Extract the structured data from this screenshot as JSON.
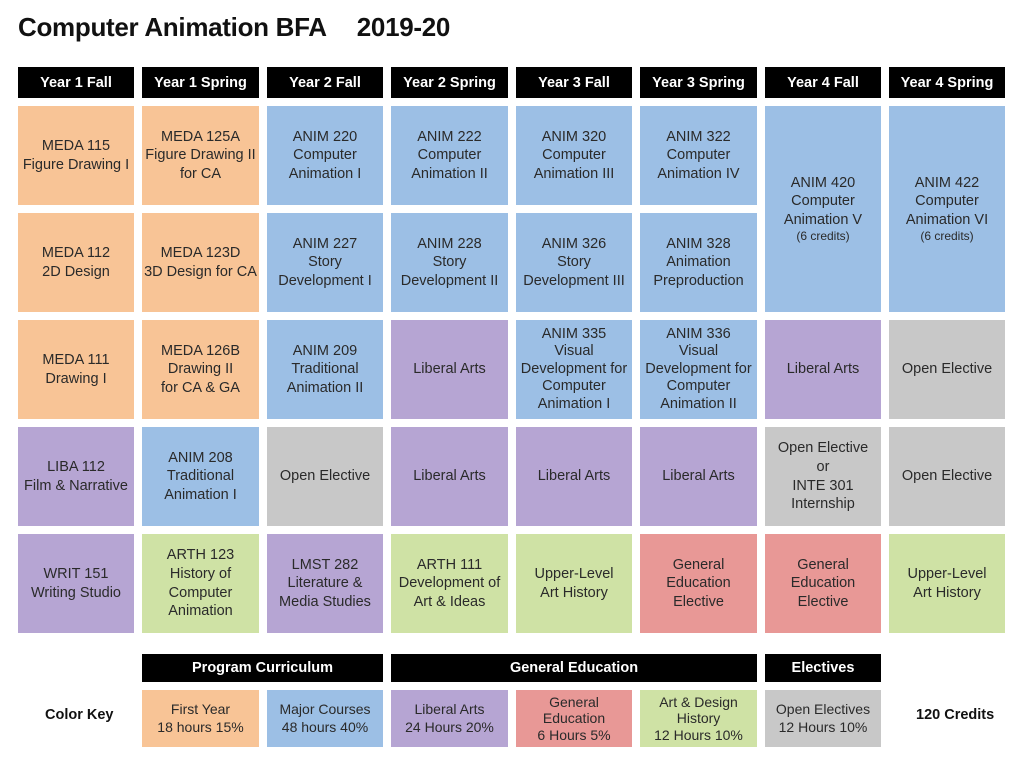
{
  "title": "Computer Animation BFA",
  "year_range": "2019-20",
  "columns": [
    "Year 1 Fall",
    "Year 1 Spring",
    "Year 2 Fall",
    "Year 2 Spring",
    "Year 3 Fall",
    "Year 3 Spring",
    "Year 4 Fall",
    "Year 4 Spring"
  ],
  "grid": {
    "r1": [
      {
        "text": "MEDA 115\nFigure Drawing I",
        "category": "first-year"
      },
      {
        "text": "MEDA 125A\nFigure Drawing II\nfor CA",
        "category": "first-year"
      },
      {
        "text": "ANIM 220\nComputer\nAnimation I",
        "category": "major"
      },
      {
        "text": "ANIM 222\nComputer\nAnimation II",
        "category": "major"
      },
      {
        "text": "ANIM 320\nComputer\nAnimation III",
        "category": "major"
      },
      {
        "text": "ANIM 322\nComputer\nAnimation IV",
        "category": "major"
      }
    ],
    "r2": [
      {
        "text": "MEDA 112\n2D Design",
        "category": "first-year"
      },
      {
        "text": "MEDA 123D\n3D Design for CA",
        "category": "first-year"
      },
      {
        "text": "ANIM 227\nStory\nDevelopment I",
        "category": "major"
      },
      {
        "text": "ANIM 228\nStory\nDevelopment II",
        "category": "major"
      },
      {
        "text": "ANIM 326\nStory\nDevelopment III",
        "category": "major"
      },
      {
        "text": "ANIM 328\nAnimation\nPreproduction",
        "category": "major"
      }
    ],
    "r3": [
      {
        "text": "MEDA 111\nDrawing I",
        "category": "first-year"
      },
      {
        "text": "MEDA 126B\nDrawing II\nfor CA & GA",
        "category": "first-year"
      },
      {
        "text": "ANIM 209\nTraditional\nAnimation II",
        "category": "major"
      },
      {
        "text": "Liberal Arts",
        "category": "liberal-arts"
      },
      {
        "text": "ANIM 335\nVisual\nDevelopment for\nComputer\nAnimation I",
        "category": "major"
      },
      {
        "text": "ANIM 336\nVisual\nDevelopment for\nComputer\nAnimation II",
        "category": "major"
      },
      {
        "text": "Liberal Arts",
        "category": "liberal-arts"
      },
      {
        "text": "Open Elective",
        "category": "elective"
      }
    ],
    "r4": [
      {
        "text": "LIBA 112\nFilm & Narrative",
        "category": "liberal-arts"
      },
      {
        "text": "ANIM 208\nTraditional\nAnimation I",
        "category": "major"
      },
      {
        "text": "Open Elective",
        "category": "elective"
      },
      {
        "text": "Liberal Arts",
        "category": "liberal-arts"
      },
      {
        "text": "Liberal Arts",
        "category": "liberal-arts"
      },
      {
        "text": "Liberal Arts",
        "category": "liberal-arts"
      },
      {
        "text": "Open Elective\nor\nINTE 301\nInternship",
        "category": "elective"
      },
      {
        "text": "Open Elective",
        "category": "elective"
      }
    ],
    "r5": [
      {
        "text": "WRIT 151\nWriting Studio",
        "category": "liberal-arts"
      },
      {
        "text": "ARTH 123\nHistory of\nComputer\nAnimation",
        "category": "art-history"
      },
      {
        "text": "LMST 282\nLiterature &\nMedia Studies",
        "category": "liberal-arts"
      },
      {
        "text": "ARTH 111\nDevelopment of\nArt & Ideas",
        "category": "art-history"
      },
      {
        "text": "Upper-Level\nArt History",
        "category": "art-history"
      },
      {
        "text": "General\nEducation\nElective",
        "category": "gen-ed"
      },
      {
        "text": "General\nEducation\nElective",
        "category": "gen-ed"
      },
      {
        "text": "Upper-Level\nArt History",
        "category": "art-history"
      }
    ],
    "tall": [
      {
        "text": "ANIM 420\nComputer\nAnimation V",
        "credits": "(6 credits)",
        "category": "major"
      },
      {
        "text": "ANIM 422\nComputer\nAnimation VI",
        "credits": "(6 credits)",
        "category": "major"
      }
    ]
  },
  "key": {
    "label": "Color Key",
    "groups": [
      "Program Curriculum",
      "General Education",
      "Electives"
    ],
    "items": [
      {
        "text": "First Year\n18 hours 15%"
      },
      {
        "text": "Major Courses\n48 hours 40%"
      },
      {
        "text": "Liberal Arts\n24 Hours 20%"
      },
      {
        "text": "General\nEducation\n6 Hours 5%"
      },
      {
        "text": "Art & Design\nHistory\n12 Hours 10%"
      },
      {
        "text": "Open Electives\n12 Hours 10%"
      }
    ],
    "total": "120 Credits"
  },
  "colors": {
    "first_year": "#f8c496",
    "major": "#9cbfe5",
    "liberal_arts": "#b6a5d3",
    "elective": "#c8c8c8",
    "art_history": "#cfe2a5",
    "gen_ed": "#e89896"
  }
}
